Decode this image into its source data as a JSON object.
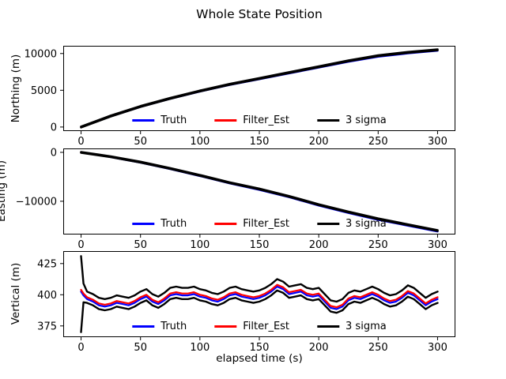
{
  "figure": {
    "title": "Whole State Position",
    "xlabel": "elapsed time (s)"
  },
  "style": {
    "truth_color": "#0000ff",
    "filter_color": "#ff0000",
    "sigma_color": "#000000",
    "background": "#ffffff"
  },
  "chart_data": [
    {
      "type": "line",
      "ylabel": "Northing (m)",
      "xlim": [
        -15,
        315
      ],
      "ylim": [
        -550,
        11050
      ],
      "xticks": [
        0,
        50,
        100,
        150,
        200,
        250,
        300
      ],
      "yticks": [
        0,
        5000,
        10000
      ],
      "legend": [
        "Truth",
        "Filter_Est",
        "3 sigma"
      ],
      "x": [
        0,
        25,
        50,
        75,
        100,
        125,
        150,
        175,
        200,
        225,
        250,
        275,
        300
      ],
      "series": [
        {
          "name": "Truth",
          "color": "#0000ff",
          "width": 2.4,
          "values": [
            0,
            1460,
            2750,
            3840,
            4830,
            5720,
            6510,
            7300,
            8090,
            8880,
            9570,
            10020,
            10380
          ]
        },
        {
          "name": "Filter_Est",
          "color": "#ff0000",
          "width": 2.4,
          "values": [
            0,
            1500,
            2800,
            3900,
            4900,
            5800,
            6600,
            7400,
            8200,
            9000,
            9700,
            10150,
            10500
          ]
        },
        {
          "name": "3 sigma upper",
          "color": "#000000",
          "width": 2.6,
          "values": [
            60,
            1560,
            2860,
            3960,
            4960,
            5860,
            6660,
            7460,
            8260,
            9060,
            9760,
            10210,
            10560
          ]
        },
        {
          "name": "3 sigma lower",
          "color": "#000000",
          "width": 2.6,
          "values": [
            -60,
            1440,
            2740,
            3840,
            4840,
            5740,
            6540,
            7340,
            8140,
            8940,
            9640,
            10090,
            10440
          ]
        }
      ]
    },
    {
      "type": "line",
      "ylabel": "Easting (m)",
      "xlim": [
        -15,
        315
      ],
      "ylim": [
        -16800,
        800
      ],
      "xticks": [
        0,
        50,
        100,
        150,
        200,
        250,
        300
      ],
      "yticks": [
        -10000,
        0
      ],
      "legend": [
        "Truth",
        "Filter_Est",
        "3 sigma"
      ],
      "x": [
        0,
        25,
        50,
        75,
        100,
        125,
        150,
        175,
        200,
        225,
        250,
        275,
        300
      ],
      "series": [
        {
          "name": "Truth",
          "color": "#0000ff",
          "width": 2.4,
          "values": [
            0,
            -960,
            -2090,
            -3410,
            -4830,
            -6340,
            -7660,
            -9170,
            -10880,
            -12390,
            -13790,
            -14990,
            -16190
          ]
        },
        {
          "name": "Filter_Est",
          "color": "#ff0000",
          "width": 2.4,
          "values": [
            0,
            -900,
            -2000,
            -3300,
            -4700,
            -6200,
            -7500,
            -9000,
            -10700,
            -12200,
            -13600,
            -14800,
            -16000
          ]
        },
        {
          "name": "3 sigma upper",
          "color": "#000000",
          "width": 2.6,
          "values": [
            80,
            -820,
            -1920,
            -3220,
            -4620,
            -6120,
            -7420,
            -8920,
            -10620,
            -12120,
            -13520,
            -14720,
            -15920
          ]
        },
        {
          "name": "3 sigma lower",
          "color": "#000000",
          "width": 2.6,
          "values": [
            -80,
            -980,
            -2080,
            -3380,
            -4780,
            -6280,
            -7580,
            -9080,
            -10780,
            -12280,
            -13680,
            -14880,
            -16080
          ]
        }
      ]
    },
    {
      "type": "line",
      "ylabel": "Vertical (m)",
      "xlim": [
        -15,
        315
      ],
      "ylim": [
        366,
        435
      ],
      "xticks": [
        0,
        50,
        100,
        150,
        200,
        250,
        300
      ],
      "yticks": [
        375,
        400,
        425
      ],
      "legend": [
        "Truth",
        "Filter_Est",
        "3 sigma"
      ],
      "x": [
        0,
        2,
        5,
        10,
        15,
        20,
        25,
        30,
        35,
        40,
        45,
        50,
        55,
        60,
        65,
        70,
        75,
        80,
        85,
        90,
        95,
        100,
        105,
        110,
        115,
        120,
        125,
        130,
        135,
        140,
        145,
        150,
        155,
        160,
        165,
        170,
        175,
        180,
        185,
        190,
        195,
        200,
        205,
        210,
        215,
        220,
        225,
        230,
        235,
        240,
        245,
        250,
        255,
        260,
        265,
        270,
        275,
        280,
        285,
        290,
        295,
        300
      ],
      "series": [
        {
          "name": "Truth",
          "color": "#0000ff",
          "width": 2.2,
          "values": [
            402.5,
            399.5,
            396.5,
            394.5,
            391.5,
            390.5,
            391.5,
            393.5,
            392.5,
            391.5,
            393.5,
            396.5,
            398.5,
            394.5,
            392.5,
            395.5,
            399.5,
            400.5,
            399.5,
            399.5,
            400.5,
            398.5,
            397.5,
            395.5,
            394.5,
            396.5,
            399.5,
            400.5,
            398.5,
            397.5,
            396.5,
            397.5,
            399.5,
            402.5,
            406.5,
            404.5,
            400.5,
            401.5,
            402.5,
            399.5,
            398.5,
            399.5,
            394.5,
            389.5,
            388.5,
            390.5,
            395.5,
            397.5,
            396.5,
            398.5,
            400.5,
            398.5,
            395.5,
            393.5,
            394.5,
            397.5,
            401.5,
            399.5,
            395.5,
            391.5,
            394.5,
            396.5
          ]
        },
        {
          "name": "Filter_Est",
          "color": "#ff0000",
          "width": 2.2,
          "values": [
            404,
            401,
            398,
            396,
            393,
            392,
            393,
            395,
            394,
            393,
            395,
            398,
            400,
            396,
            394,
            397,
            401,
            402,
            401,
            401,
            402,
            400,
            399,
            397,
            396,
            398,
            401,
            402,
            400,
            399,
            398,
            399,
            401,
            404,
            408,
            406,
            402,
            403,
            404,
            401,
            400,
            401,
            396,
            391,
            390,
            392,
            397,
            399,
            398,
            400,
            402,
            400,
            397,
            395,
            396,
            399,
            403,
            401,
            397,
            393,
            396,
            398
          ]
        },
        {
          "name": "3 sigma upper",
          "color": "#000000",
          "width": 2.4,
          "values": [
            431,
            409,
            402.5,
            400.5,
            397.5,
            396.5,
            397.5,
            399.5,
            398.5,
            397.5,
            399.5,
            402.5,
            404.5,
            400.5,
            398.5,
            401.5,
            405.5,
            406.5,
            405.5,
            405.5,
            406.5,
            404.5,
            403.5,
            401.5,
            400.5,
            402.5,
            405.5,
            406.5,
            404.5,
            403.5,
            402.5,
            403.5,
            405.5,
            408.5,
            412.5,
            410.5,
            406.5,
            407.5,
            408.5,
            405.5,
            404.5,
            405.5,
            400.5,
            395.5,
            394.5,
            396.5,
            401.5,
            403.5,
            402.5,
            404.5,
            406.5,
            404.5,
            401.5,
            399.5,
            400.5,
            403.5,
            407.5,
            405.5,
            401.5,
            397.5,
            400.5,
            402.5
          ]
        },
        {
          "name": "3 sigma lower",
          "color": "#000000",
          "width": 2.4,
          "values": [
            370,
            394,
            393.5,
            391.5,
            388.5,
            387.5,
            388.5,
            390.5,
            389.5,
            388.5,
            390.5,
            393.5,
            395.5,
            391.5,
            389.5,
            392.5,
            396.5,
            397.5,
            396.5,
            396.5,
            397.5,
            395.5,
            394.5,
            392.5,
            391.5,
            393.5,
            396.5,
            397.5,
            395.5,
            394.5,
            393.5,
            394.5,
            396.5,
            399.5,
            403.5,
            401.5,
            397.5,
            398.5,
            399.5,
            396.5,
            395.5,
            396.5,
            391.5,
            386.5,
            385.5,
            387.5,
            392.5,
            394.5,
            393.5,
            395.5,
            397.5,
            395.5,
            392.5,
            390.5,
            391.5,
            394.5,
            398.5,
            396.5,
            392.5,
            388.5,
            391.5,
            393.5
          ]
        }
      ]
    }
  ]
}
